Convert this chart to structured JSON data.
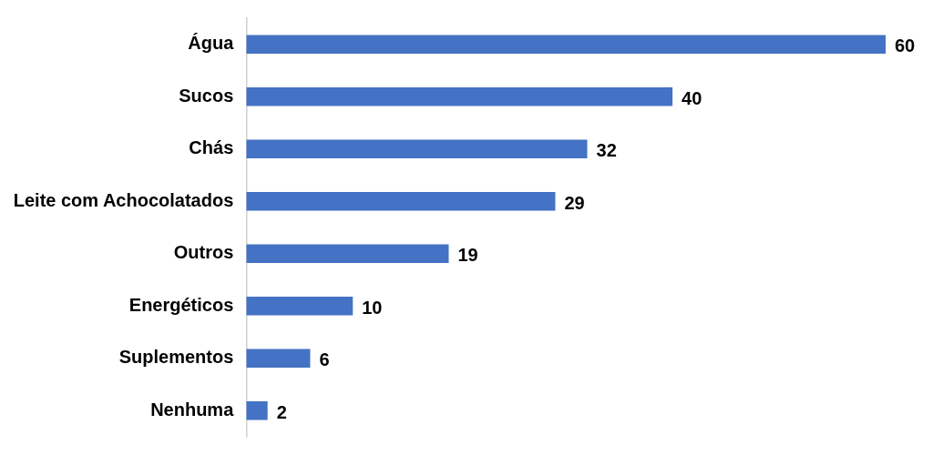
{
  "chart_data": {
    "type": "bar",
    "orientation": "horizontal",
    "categories": [
      "Água",
      "Sucos",
      "Chás",
      "Leite com Achocolatados",
      "Outros",
      "Energéticos",
      "Suplementos",
      "Nenhuma"
    ],
    "values": [
      60,
      40,
      32,
      29,
      19,
      10,
      6,
      2
    ],
    "color": "#4472c4",
    "data_labels": true,
    "grid": false,
    "legend": false
  }
}
